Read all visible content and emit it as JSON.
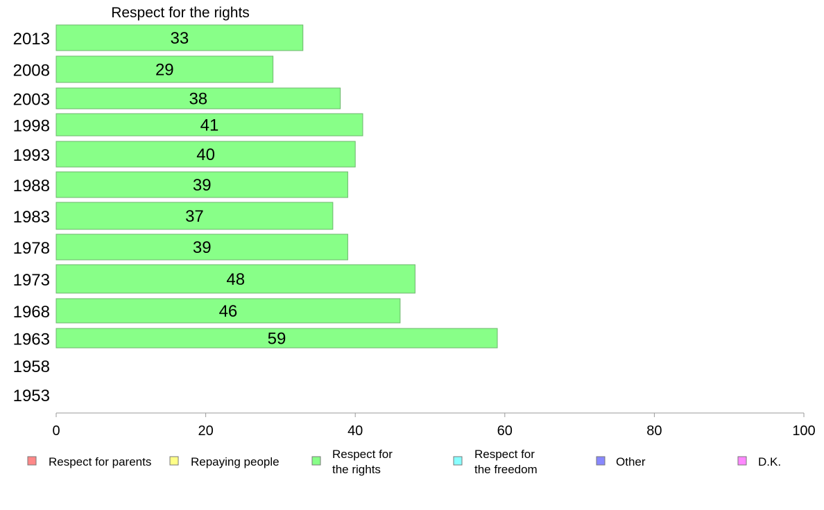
{
  "chart_data": {
    "type": "bar",
    "orientation": "horizontal",
    "title": "Respect for the rights",
    "categories": [
      "2013",
      "2008",
      "2003",
      "1998",
      "1993",
      "1988",
      "1983",
      "1978",
      "1973",
      "1968",
      "1963",
      "1958",
      "1953"
    ],
    "series": [
      {
        "name": "Respect for the rights",
        "color": "#88ff88",
        "values": [
          33,
          29,
          38,
          41,
          40,
          39,
          37,
          39,
          48,
          46,
          59,
          null,
          null
        ]
      }
    ],
    "xlim": [
      0,
      100
    ],
    "xticks": [
      "0",
      "20",
      "40",
      "60",
      "80",
      "100"
    ],
    "grid": false,
    "legend_placement": "bottom",
    "legend": [
      {
        "label": "Respect for parents",
        "color": "#ff8888"
      },
      {
        "label": "Repaying people",
        "color": "#ffff88"
      },
      {
        "label": "Respect for the rights",
        "color": "#88ff88"
      },
      {
        "label": "Respect for the freedom",
        "color": "#88ffff"
      },
      {
        "label": "Other",
        "color": "#8888ff"
      },
      {
        "label": "D.K.",
        "color": "#ff88ff"
      }
    ]
  }
}
